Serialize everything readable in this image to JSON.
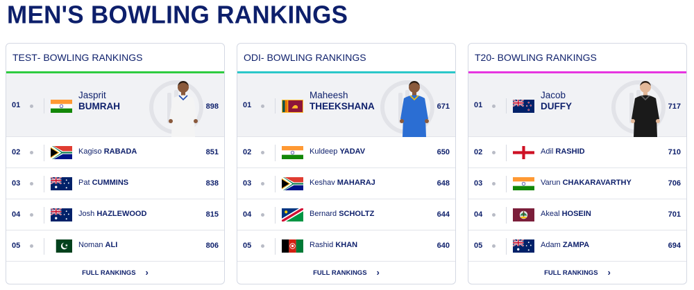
{
  "page": {
    "title": "MEN'S BOWLING RANKINGS"
  },
  "colors": {
    "test": "#2ecc40",
    "odi": "#2bc7c9",
    "t20": "#e635e0",
    "navy": "#0d1f6b"
  },
  "panels": [
    {
      "format": "TEST",
      "title_suffix": " - BOWLING RANKINGS",
      "top": {
        "rank": "01",
        "first": "Jasprit",
        "last": "BUMRAH",
        "points": "898",
        "flag": "india-flag-icon",
        "kit": "white"
      },
      "rows": [
        {
          "rank": "02",
          "first": "Kagiso",
          "last": "RABADA",
          "points": "851",
          "flag": "south-africa-flag-icon"
        },
        {
          "rank": "03",
          "first": "Pat",
          "last": "CUMMINS",
          "points": "838",
          "flag": "australia-flag-icon"
        },
        {
          "rank": "04",
          "first": "Josh",
          "last": "HAZLEWOOD",
          "points": "815",
          "flag": "australia-flag-icon"
        },
        {
          "rank": "05",
          "first": "Noman",
          "last": "ALI",
          "points": "806",
          "flag": "pakistan-flag-icon"
        }
      ],
      "footer": "FULL RANKINGS"
    },
    {
      "format": "ODI",
      "title_suffix": " - BOWLING RANKINGS",
      "top": {
        "rank": "01",
        "first": "Maheesh",
        "last": "THEEKSHANA",
        "points": "671",
        "flag": "sri-lanka-flag-icon",
        "kit": "blue"
      },
      "rows": [
        {
          "rank": "02",
          "first": "Kuldeep",
          "last": "YADAV",
          "points": "650",
          "flag": "india-flag-icon"
        },
        {
          "rank": "03",
          "first": "Keshav",
          "last": "MAHARAJ",
          "points": "648",
          "flag": "south-africa-flag-icon"
        },
        {
          "rank": "04",
          "first": "Bernard",
          "last": "SCHOLTZ",
          "points": "644",
          "flag": "namibia-flag-icon"
        },
        {
          "rank": "05",
          "first": "Rashid",
          "last": "KHAN",
          "points": "640",
          "flag": "afghanistan-flag-icon"
        }
      ],
      "footer": "FULL RANKINGS"
    },
    {
      "format": "T20",
      "title_suffix": " - BOWLING RANKINGS",
      "top": {
        "rank": "01",
        "first": "Jacob",
        "last": "DUFFY",
        "points": "717",
        "flag": "new-zealand-flag-icon",
        "kit": "black"
      },
      "rows": [
        {
          "rank": "02",
          "first": "Adil",
          "last": "RASHID",
          "points": "710",
          "flag": "england-flag-icon"
        },
        {
          "rank": "03",
          "first": "Varun",
          "last": "CHAKARAVARTHY",
          "points": "706",
          "flag": "india-flag-icon"
        },
        {
          "rank": "04",
          "first": "Akeal",
          "last": "HOSEIN",
          "points": "701",
          "flag": "west-indies-flag-icon"
        },
        {
          "rank": "05",
          "first": "Adam",
          "last": "ZAMPA",
          "points": "694",
          "flag": "australia-flag-icon"
        }
      ],
      "footer": "FULL RANKINGS"
    }
  ]
}
